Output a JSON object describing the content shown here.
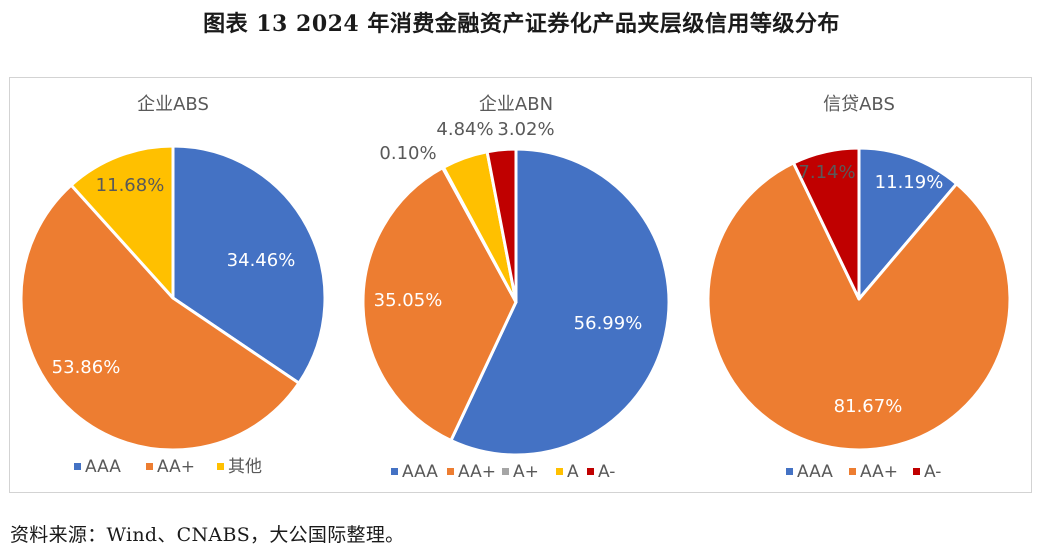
{
  "figure_title": "图表 13 2024 年消费金融资产证券化产品夹层级信用等级分布",
  "source_note": "资料来源：Wind、CNABS，大公国际整理。",
  "colors": {
    "AAA": "#4472C4",
    "AA+": "#ED7D31",
    "A+": "#A5A5A5",
    "A": "#FFC000",
    "A-": "#C00000",
    "其他": "#FFC000"
  },
  "chart_data": [
    {
      "type": "pie",
      "title": "企业ABS",
      "slices": [
        {
          "label": "AAA",
          "value": 34.46,
          "display": "34.46%"
        },
        {
          "label": "AA+",
          "value": 53.86,
          "display": "53.86%"
        },
        {
          "label": "其他",
          "value": 11.68,
          "display": "11.68%"
        }
      ],
      "legend": [
        "AAA",
        "AA+",
        "其他"
      ],
      "legend_position": "bottom"
    },
    {
      "type": "pie",
      "title": "企业ABN",
      "slices": [
        {
          "label": "AAA",
          "value": 56.99,
          "display": "56.99%"
        },
        {
          "label": "AA+",
          "value": 35.05,
          "display": "35.05%"
        },
        {
          "label": "A+",
          "value": 0.1,
          "display": "0.10%"
        },
        {
          "label": "A",
          "value": 4.84,
          "display": "4.84%"
        },
        {
          "label": "A-",
          "value": 3.02,
          "display": "3.02%"
        }
      ],
      "legend": [
        "AAA",
        "AA+",
        "A+",
        "A",
        "A-"
      ],
      "legend_position": "bottom"
    },
    {
      "type": "pie",
      "title": "信贷ABS",
      "slices": [
        {
          "label": "AAA",
          "value": 11.19,
          "display": "11.19%"
        },
        {
          "label": "AA+",
          "value": 81.67,
          "display": "81.67%"
        },
        {
          "label": "A-",
          "value": 7.14,
          "display": "7.14%"
        }
      ],
      "legend": [
        "AAA",
        "AA+",
        "A-"
      ],
      "legend_position": "bottom"
    }
  ]
}
